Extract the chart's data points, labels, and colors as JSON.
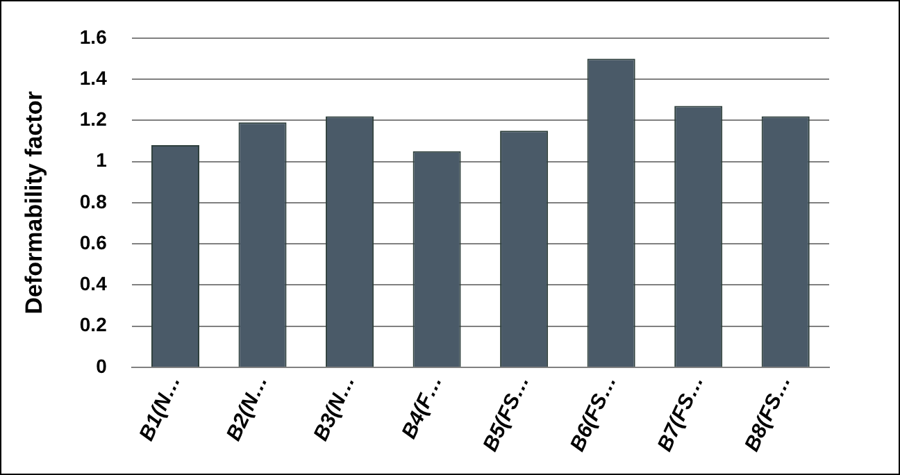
{
  "chart_data": {
    "type": "bar",
    "ylabel": "Deformability factor",
    "categories": [
      "B1(N…",
      "B2(N…",
      "B3(N…",
      "B4(F…",
      "B5(FS…",
      "B6(FS…",
      "B7(FS…",
      "B8(FS…"
    ],
    "values": [
      1.08,
      1.19,
      1.22,
      1.05,
      1.15,
      1.5,
      1.27,
      1.22
    ],
    "color": "#4a5a68",
    "ylim": [
      0,
      1.6
    ],
    "yticks": [
      0,
      0.2,
      0.4,
      0.6,
      0.8,
      1,
      1.2,
      1.4,
      1.6
    ],
    "grid": "y",
    "legend": false
  }
}
